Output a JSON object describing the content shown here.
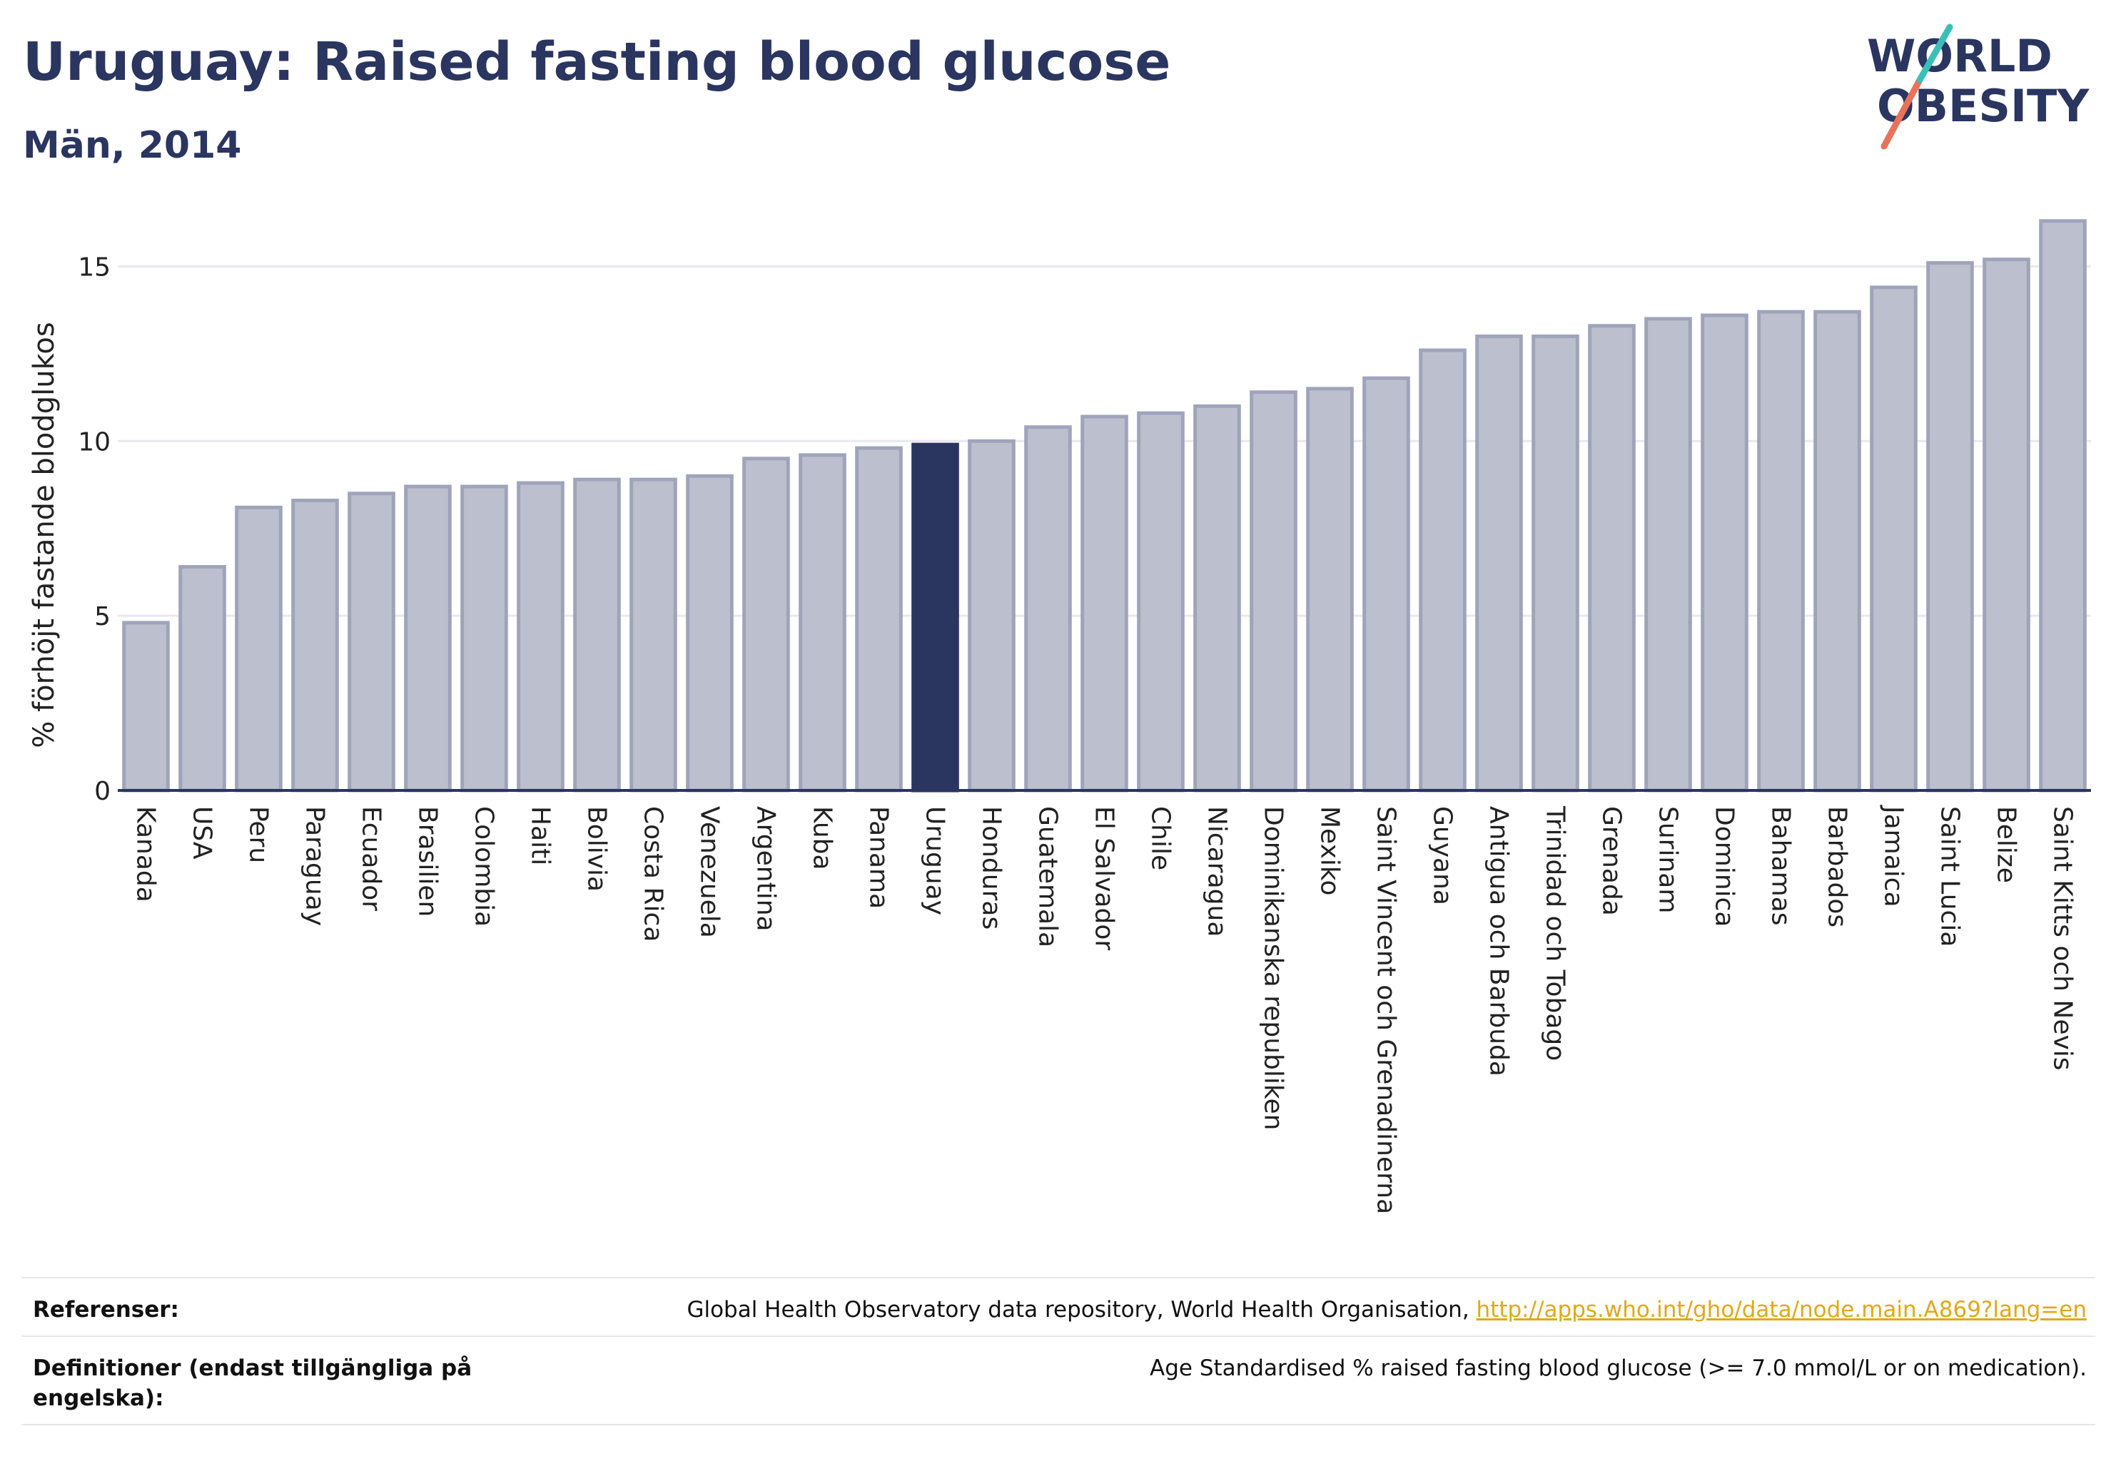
{
  "header": {
    "title": "Uruguay: Raised fasting blood glucose",
    "subtitle": "Män, 2014"
  },
  "logo": {
    "line1": "WORLD",
    "line2": "OBESITY"
  },
  "chart_data": {
    "type": "bar",
    "title": "Uruguay: Raised fasting blood glucose",
    "subtitle": "Män, 2014",
    "xlabel": "",
    "ylabel": "% förhöjt fastande blodglukos",
    "ylim": [
      0,
      16.5
    ],
    "yticks": [
      0,
      5,
      10,
      15
    ],
    "grid": true,
    "highlight": "Uruguay",
    "categories": [
      "Kanada",
      "USA",
      "Peru",
      "Paraguay",
      "Ecuador",
      "Brasilien",
      "Colombia",
      "Haiti",
      "Bolivia",
      "Costa Rica",
      "Venezuela",
      "Argentina",
      "Kuba",
      "Panama",
      "Uruguay",
      "Honduras",
      "Guatemala",
      "El Salvador",
      "Chile",
      "Nicaragua",
      "Dominikanska republiken",
      "Mexiko",
      "Saint Vincent och Grenadinerna",
      "Guyana",
      "Antigua och Barbuda",
      "Trinidad och Tobago",
      "Grenada",
      "Surinam",
      "Dominica",
      "Bahamas",
      "Barbados",
      "Jamaica",
      "Saint Lucia",
      "Belize",
      "Saint Kitts och Nevis"
    ],
    "values": [
      4.8,
      6.4,
      8.1,
      8.3,
      8.5,
      8.7,
      8.7,
      8.8,
      8.9,
      8.9,
      9.0,
      9.5,
      9.6,
      9.8,
      9.9,
      10.0,
      10.4,
      10.7,
      10.8,
      11.0,
      11.4,
      11.5,
      11.8,
      12.6,
      13.0,
      13.0,
      13.3,
      13.5,
      13.6,
      13.7,
      13.7,
      14.4,
      15.1,
      15.2,
      16.3
    ],
    "colors": {
      "bar": "#bcc0ce",
      "bar_stroke": "#9fa4bb",
      "highlight": "#2a3560",
      "grid": "#e8e8ee",
      "axis": "#2a3560"
    }
  },
  "footer": {
    "references_label": "Referenser:",
    "references_text": "Global Health Observatory data repository, World Health Organisation, ",
    "references_link": "http://apps.who.int/gho/data/node.main.A869?lang=en",
    "definitions_label": "Definitioner (endast tillgängliga på engelska):",
    "definitions_text": "Age Standardised % raised fasting blood glucose (>= 7.0 mmol/L or on medication)."
  }
}
